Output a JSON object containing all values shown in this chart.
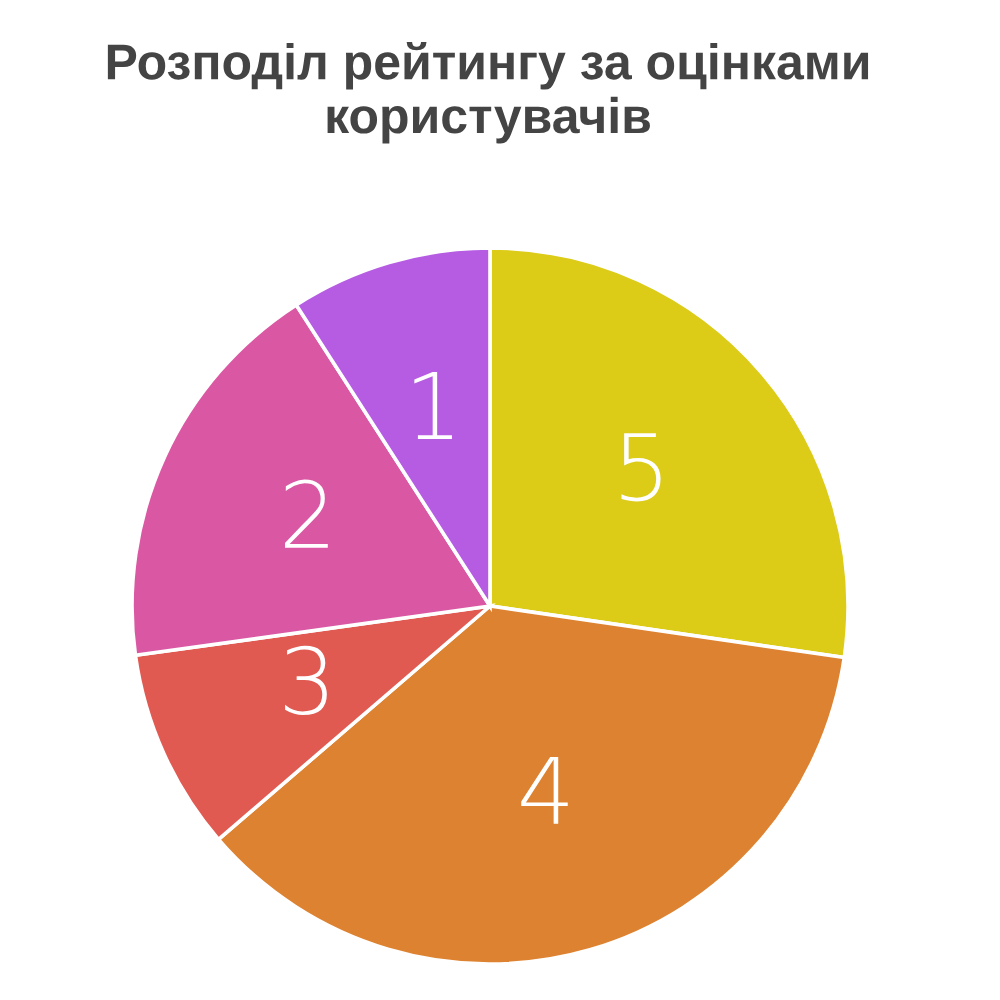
{
  "chart_data": {
    "type": "pie",
    "title": "Розподіл рейтингу за оцінками користувачів",
    "categories": [
      "5",
      "4",
      "3",
      "2",
      "1"
    ],
    "values": [
      27.3,
      36.4,
      9.1,
      18.1,
      9.1
    ],
    "colors": [
      "#dccb17",
      "#dd8230",
      "#e05a52",
      "#da58a3",
      "#b55ce3"
    ]
  }
}
